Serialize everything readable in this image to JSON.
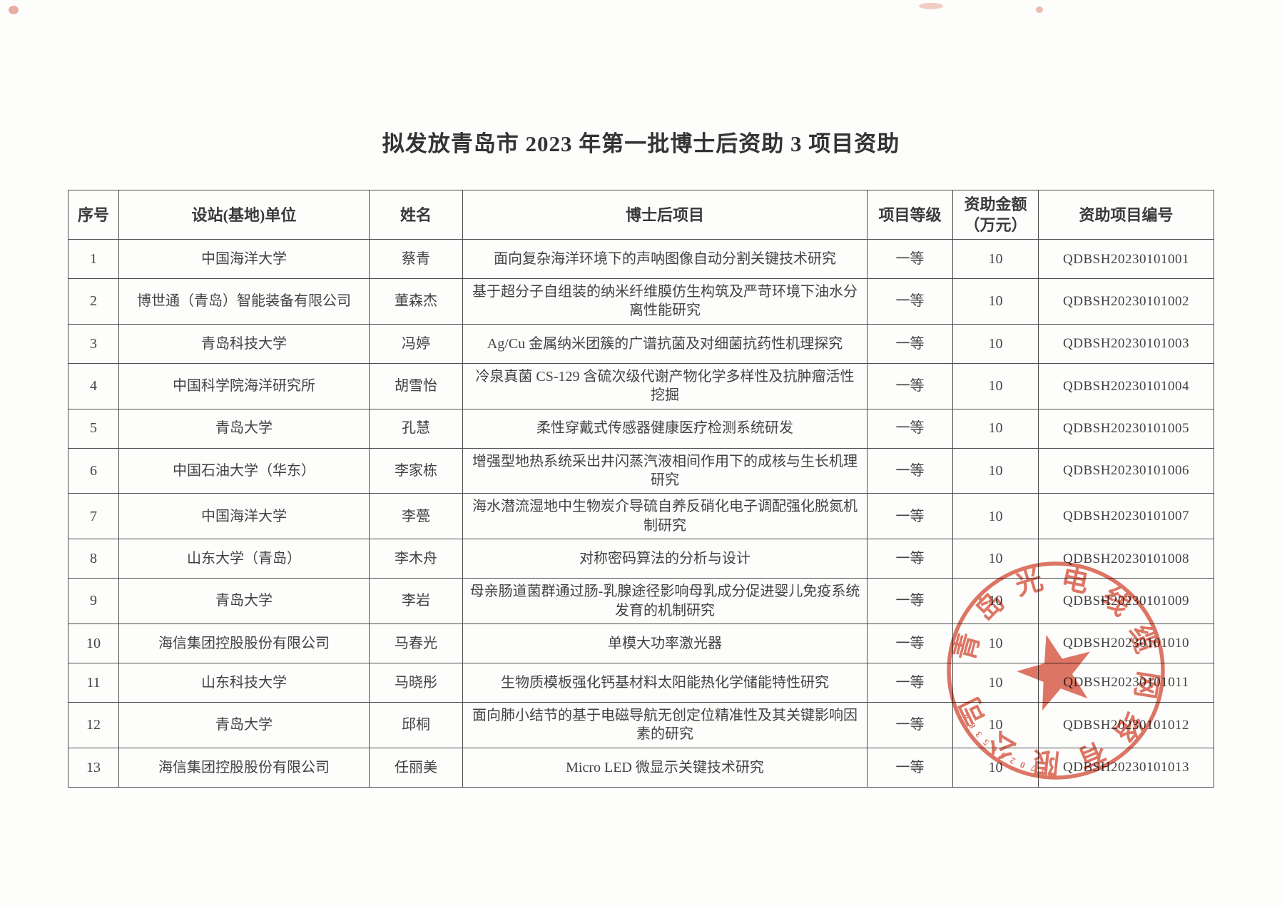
{
  "document": {
    "title": "拟发放青岛市 2023 年第一批博士后资助 3 项目资助"
  },
  "table": {
    "headers": {
      "no": "序号",
      "unit": "设站(基地)单位",
      "name": "姓名",
      "project": "博士后项目",
      "grade": "项目等级",
      "amount": "资助金额\n（万元）",
      "code": "资助项目编号"
    },
    "rows": [
      {
        "no": "1",
        "unit": "中国海洋大学",
        "name": "蔡青",
        "project": "面向复杂海洋环境下的声呐图像自动分割关键技术研究",
        "grade": "一等",
        "amount": "10",
        "code": "QDBSH20230101001"
      },
      {
        "no": "2",
        "unit": "博世通（青岛）智能装备有限公司",
        "name": "董森杰",
        "project": "基于超分子自组装的纳米纤维膜仿生构筑及严苛环境下油水分离性能研究",
        "grade": "一等",
        "amount": "10",
        "code": "QDBSH20230101002"
      },
      {
        "no": "3",
        "unit": "青岛科技大学",
        "name": "冯婷",
        "project": "Ag/Cu 金属纳米团簇的广谱抗菌及对细菌抗药性机理探究",
        "grade": "一等",
        "amount": "10",
        "code": "QDBSH20230101003"
      },
      {
        "no": "4",
        "unit": "中国科学院海洋研究所",
        "name": "胡雪怡",
        "project": "冷泉真菌 CS-129 含硫次级代谢产物化学多样性及抗肿瘤活性挖掘",
        "grade": "一等",
        "amount": "10",
        "code": "QDBSH20230101004"
      },
      {
        "no": "5",
        "unit": "青岛大学",
        "name": "孔慧",
        "project": "柔性穿戴式传感器健康医疗检测系统研发",
        "grade": "一等",
        "amount": "10",
        "code": "QDBSH20230101005"
      },
      {
        "no": "6",
        "unit": "中国石油大学（华东）",
        "name": "李家栋",
        "project": "增强型地热系统采出井闪蒸汽液相间作用下的成核与生长机理研究",
        "grade": "一等",
        "amount": "10",
        "code": "QDBSH20230101006"
      },
      {
        "no": "7",
        "unit": "中国海洋大学",
        "name": "李甍",
        "project": "海水潜流湿地中生物炭介导硫自养反硝化电子调配强化脱氮机制研究",
        "grade": "一等",
        "amount": "10",
        "code": "QDBSH20230101007"
      },
      {
        "no": "8",
        "unit": "山东大学（青岛）",
        "name": "李木舟",
        "project": "对称密码算法的分析与设计",
        "grade": "一等",
        "amount": "10",
        "code": "QDBSH20230101008"
      },
      {
        "no": "9",
        "unit": "青岛大学",
        "name": "李岩",
        "project": "母亲肠道菌群通过肠-乳腺途径影响母乳成分促进婴儿免疫系统发育的机制研究",
        "grade": "一等",
        "amount": "10",
        "code": "QDBSH20230101009"
      },
      {
        "no": "10",
        "unit": "海信集团控股股份有限公司",
        "name": "马春光",
        "project": "单模大功率激光器",
        "grade": "一等",
        "amount": "10",
        "code": "QDBSH20230101010"
      },
      {
        "no": "11",
        "unit": "山东科技大学",
        "name": "马晓彤",
        "project": "生物质模板强化钙基材料太阳能热化学储能特性研究",
        "grade": "一等",
        "amount": "10",
        "code": "QDBSH20230101011"
      },
      {
        "no": "12",
        "unit": "青岛大学",
        "name": "邱桐",
        "project": "面向肺小结节的基于电磁导航无创定位精准性及其关键影响因素的研究",
        "grade": "一等",
        "amount": "10",
        "code": "QDBSH20230101012"
      },
      {
        "no": "13",
        "unit": "海信集团控股股份有限公司",
        "name": "任丽美",
        "project": "Micro LED 微显示关键技术研究",
        "grade": "一等",
        "amount": "10",
        "code": "QDBSH20230101013"
      }
    ]
  },
  "stamp": {
    "ring_text": "青岛光电线缆网络有限公司",
    "serial_number": "3702005380",
    "color": "#d85843"
  }
}
